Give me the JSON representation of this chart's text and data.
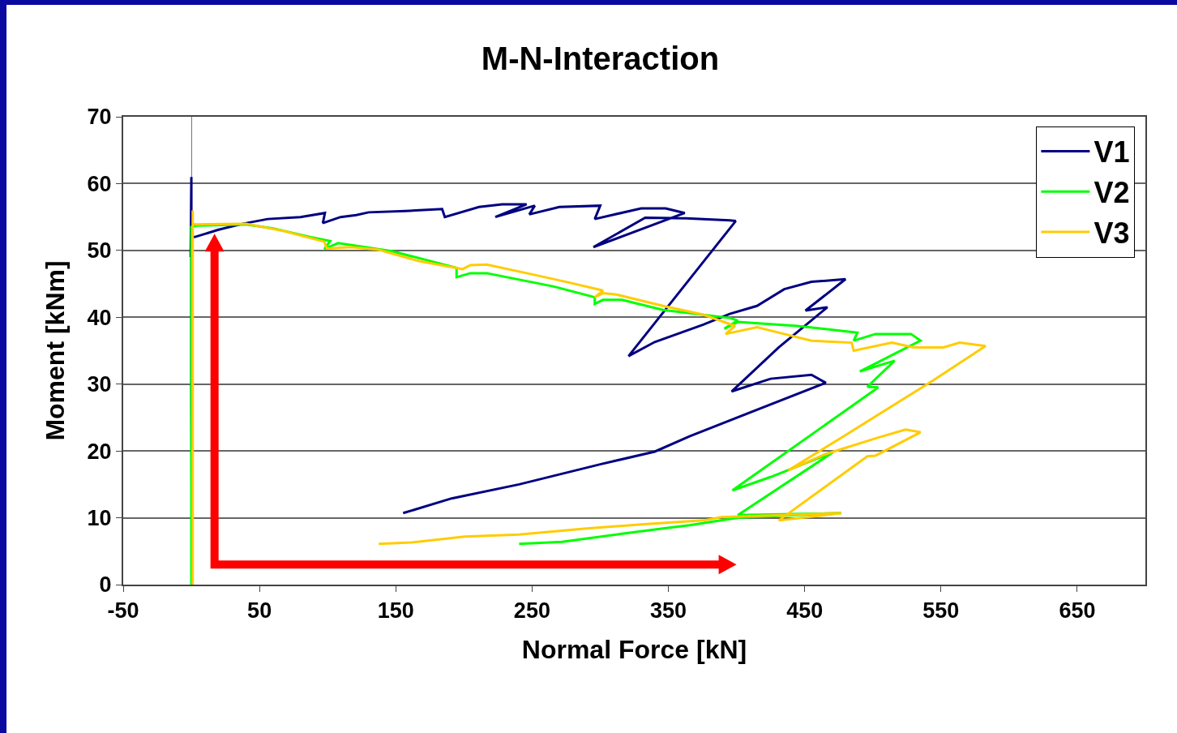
{
  "chart_data": {
    "type": "line",
    "title": "M-N-Interaction",
    "xlabel": "Normal Force [kN]",
    "ylabel": "Moment [kNm]",
    "xlim": [
      -50,
      700
    ],
    "xticks": [
      -50,
      50,
      150,
      250,
      350,
      450,
      550,
      650
    ],
    "ylim": [
      0,
      70
    ],
    "yticks": [
      0,
      10,
      20,
      30,
      40,
      50,
      60,
      70
    ],
    "grid": "y",
    "legend": "top right",
    "marker": "none",
    "line_style": "solid",
    "series": [
      {
        "name": "V1",
        "color": "#000080",
        "x": [
          0.5,
          0,
          0,
          -0.5,
          0,
          0.5,
          2.4,
          20,
          38,
          56,
          80,
          98,
          96.5,
          109.5,
          121,
          130,
          157,
          184,
          186,
          211,
          228,
          246,
          223,
          252,
          248,
          270,
          300,
          296,
          330,
          348,
          362,
          295,
          333,
          363,
          395,
          399.4,
          320.8,
          340,
          375.6,
          395,
          415,
          435,
          455,
          480,
          450.6,
          466.7,
          431,
          396.4,
          425,
          455,
          465.5,
          365.5,
          340,
          300,
          240.5,
          191,
          155.4
        ],
        "values": [
          0,
          30,
          61,
          49,
          55,
          52,
          52,
          53.1,
          54,
          54.7,
          55,
          55.6,
          54.1,
          55,
          55.3,
          55.7,
          55.9,
          56.2,
          55,
          56.5,
          56.9,
          56.9,
          55,
          56.7,
          55.4,
          56.5,
          56.7,
          54.7,
          56.3,
          56.3,
          55.6,
          50.5,
          54.9,
          54.8,
          54.5,
          54.4,
          34.2,
          36.3,
          38.9,
          40.5,
          41.7,
          44.2,
          45.3,
          45.7,
          41,
          41.5,
          35.5,
          28.9,
          30.8,
          31.4,
          30.2,
          22.2,
          19.9,
          18,
          15,
          12.9,
          10.7
        ]
      },
      {
        "name": "V2",
        "color": "#00ff00",
        "x": [
          0,
          0,
          0,
          3.6,
          40,
          60,
          87.5,
          101.8,
          97.6,
          107.7,
          147,
          194.6,
          194.6,
          204.8,
          216.7,
          266,
          296,
          296,
          302,
          316,
          346,
          395,
          401,
          391,
          401,
          444.6,
          488.7,
          486,
          502,
          528,
          535,
          490.5,
          516,
          496,
          504,
          397,
          425,
          470.8,
          401,
          476.8,
          401,
          365.5,
          346,
          316,
          272,
          240.5
        ],
        "values": [
          0,
          30,
          53.5,
          53.7,
          53.9,
          53.3,
          52,
          51.4,
          50.2,
          51.1,
          49.9,
          47.4,
          46,
          46.6,
          46.6,
          44.6,
          43,
          42,
          42.6,
          42.6,
          41.1,
          39.9,
          39.5,
          38.3,
          39.3,
          38.7,
          37.7,
          36.5,
          37.5,
          37.5,
          36.5,
          31.9,
          33.5,
          29.6,
          29.5,
          14.1,
          16.1,
          19.8,
          10.4,
          10.7,
          10,
          8.9,
          8.4,
          7.6,
          6.4,
          6.1
        ]
      },
      {
        "name": "V3",
        "color": "#ffcc00",
        "x": [
          1,
          1,
          1,
          1,
          3.6,
          40,
          68,
          97.6,
          99.4,
          117,
          137.5,
          167,
          199,
          204.8,
          216.7,
          246,
          275,
          302,
          296,
          302,
          312,
          346,
          375.6,
          399,
          392,
          415,
          435,
          455,
          484.5,
          486,
          514,
          530,
          551.8,
          563.7,
          582.7,
          544,
          477,
          438,
          465,
          504,
          524,
          535,
          502,
          496,
          431,
          477,
          389,
          375.6,
          330,
          290,
          240.5,
          200.6,
          161,
          137.5
        ],
        "values": [
          0,
          30,
          56,
          54,
          53.9,
          54,
          52.9,
          51.3,
          50.3,
          50.5,
          50.1,
          48.4,
          47.2,
          47.8,
          47.9,
          46.6,
          45.3,
          44,
          43,
          43.6,
          43.4,
          41.7,
          40.4,
          38.7,
          37.5,
          38.5,
          37.5,
          36.5,
          36.2,
          35,
          36.2,
          35.5,
          35.5,
          36.2,
          35.7,
          30.5,
          22,
          17.1,
          19.5,
          22,
          23.2,
          22.8,
          19.3,
          19.2,
          9.6,
          10.7,
          10.1,
          9.6,
          9,
          8.4,
          7.5,
          7.2,
          6.3,
          6.1
        ]
      }
    ]
  }
}
